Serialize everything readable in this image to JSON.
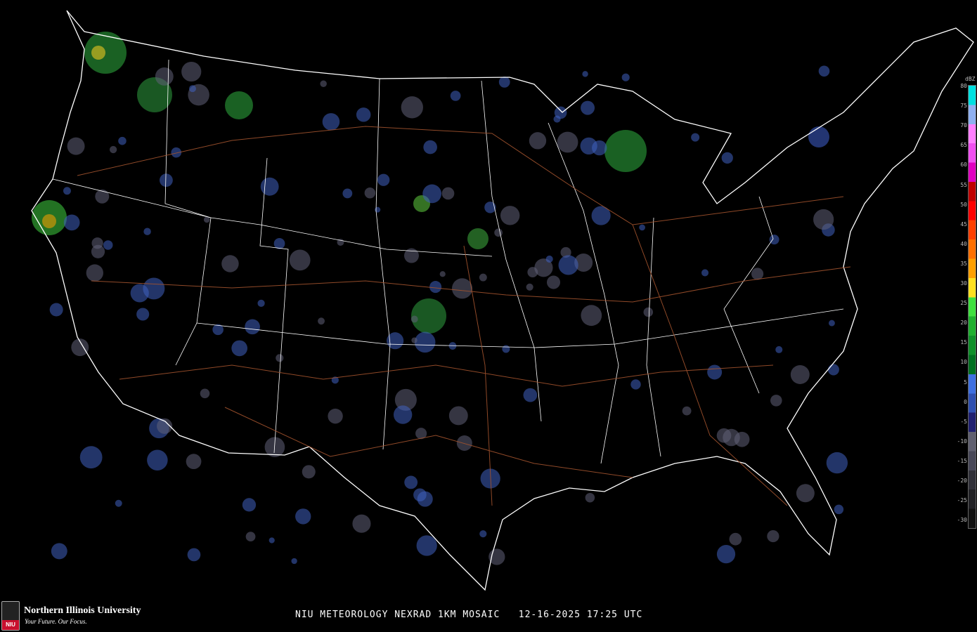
{
  "caption": "NIU METEOROLOGY NEXRAD 1KM MOSAIC   12-16-2025 17:25 UTC",
  "logo": {
    "name": "Northern Illinois University",
    "tagline": "Your Future. Our Focus.",
    "badge": "NIU"
  },
  "legend": {
    "unit": "dBZ",
    "labels": [
      "80",
      "75",
      "70",
      "65",
      "60",
      "55",
      "50",
      "45",
      "40",
      "35",
      "30",
      "25",
      "20",
      "15",
      "10",
      "5",
      "0",
      "-5",
      "-10",
      "-15",
      "-20",
      "-25",
      "-30"
    ],
    "colors": [
      "#00e0e0",
      "#8fb0f0",
      "#ff80ff",
      "#f050f0",
      "#e000c0",
      "#c00000",
      "#ff0000",
      "#ff4000",
      "#ff7000",
      "#ffa000",
      "#ffe020",
      "#40e040",
      "#20b030",
      "#10902a",
      "#007020",
      "#4070e0",
      "#3050b0",
      "#202070",
      "#606070",
      "#484858",
      "#303038",
      "#202024",
      "#101010"
    ]
  },
  "colors": {
    "background": "#000000",
    "borders": "#ffffff",
    "highways": "#a0522d"
  }
}
